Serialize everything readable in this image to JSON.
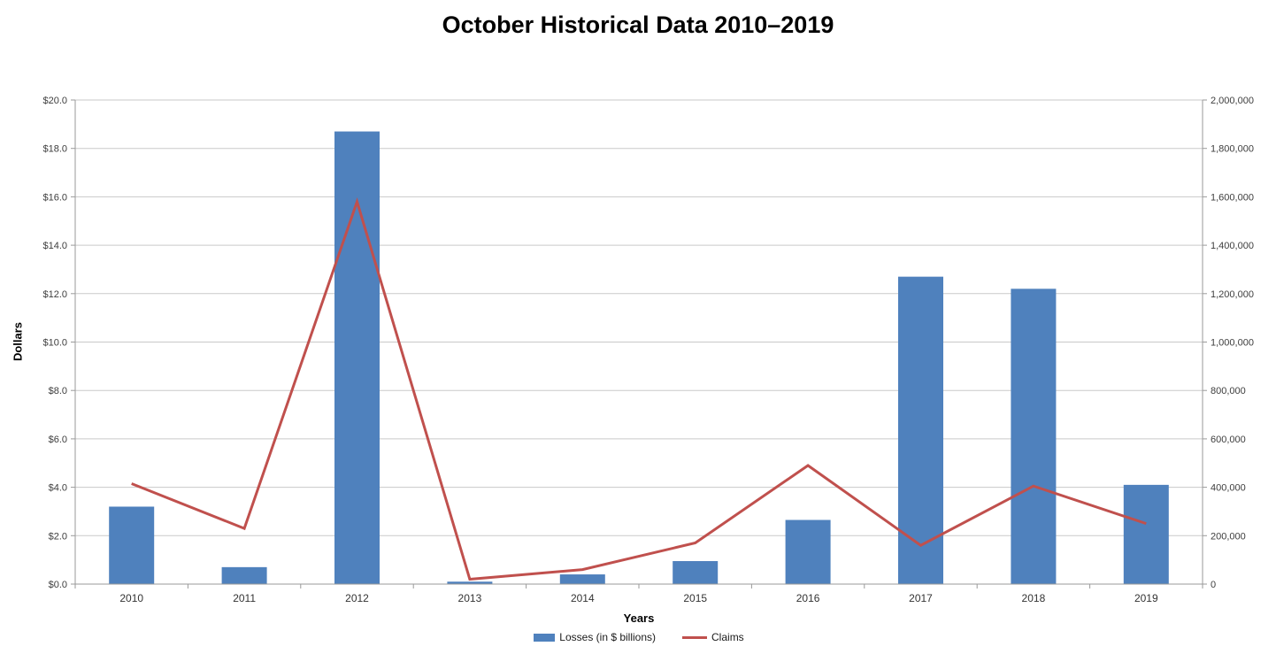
{
  "title": "October Historical Data 2010–2019",
  "colors": {
    "bar": "#4F81BD",
    "line": "#C0504D",
    "gridline": "#C9C9C9",
    "axis": "#9a9a9a",
    "tick_text": "#3d3d3d",
    "title_text": "#000000"
  },
  "axes": {
    "left_title": "Dollars",
    "bottom_title": "Years",
    "right_title": ""
  },
  "legend": {
    "losses_label": "Losses (in $ billions)",
    "claims_label": "Claims"
  },
  "chart_data": {
    "type": "bar",
    "combo": "bar + line, dual y-axes",
    "title": "October Historical Data 2010–2019",
    "xlabel": "Years",
    "ylabel": "Dollars",
    "ylabel_right": "",
    "categories": [
      "2010",
      "2011",
      "2012",
      "2013",
      "2014",
      "2015",
      "2016",
      "2017",
      "2018",
      "2019"
    ],
    "series": [
      {
        "name": "Losses (in $ billions)",
        "type": "bar",
        "axis": "left",
        "values": [
          3.2,
          0.7,
          18.7,
          0.1,
          0.4,
          0.95,
          2.65,
          12.7,
          12.2,
          4.1
        ]
      },
      {
        "name": "Claims",
        "type": "line",
        "axis": "right",
        "values": [
          415000,
          230000,
          1580000,
          20000,
          60000,
          170000,
          490000,
          160000,
          405000,
          250000
        ]
      }
    ],
    "ylim_left": [
      0,
      20
    ],
    "ylim_right": [
      0,
      2000000
    ],
    "grid": "horizontal",
    "legend_position": "bottom",
    "yticks_left": [
      {
        "value": 0,
        "label": "$0.0"
      },
      {
        "value": 2,
        "label": "$2.0"
      },
      {
        "value": 4,
        "label": "$4.0"
      },
      {
        "value": 6,
        "label": "$6.0"
      },
      {
        "value": 8,
        "label": "$8.0"
      },
      {
        "value": 10,
        "label": "$10.0"
      },
      {
        "value": 12,
        "label": "$12.0"
      },
      {
        "value": 14,
        "label": "$14.0"
      },
      {
        "value": 16,
        "label": "$16.0"
      },
      {
        "value": 18,
        "label": "$18.0"
      },
      {
        "value": 20,
        "label": "$20.0"
      }
    ],
    "yticks_right": [
      {
        "value": 0,
        "label": "0"
      },
      {
        "value": 200000,
        "label": "200,000"
      },
      {
        "value": 400000,
        "label": "400,000"
      },
      {
        "value": 600000,
        "label": "600,000"
      },
      {
        "value": 800000,
        "label": "800,000"
      },
      {
        "value": 1000000,
        "label": "1,000,000"
      },
      {
        "value": 1200000,
        "label": "1,200,000"
      },
      {
        "value": 1400000,
        "label": "1,400,000"
      },
      {
        "value": 1600000,
        "label": "1,600,000"
      },
      {
        "value": 1800000,
        "label": "1,800,000"
      },
      {
        "value": 2000000,
        "label": "2,000,000"
      }
    ]
  }
}
